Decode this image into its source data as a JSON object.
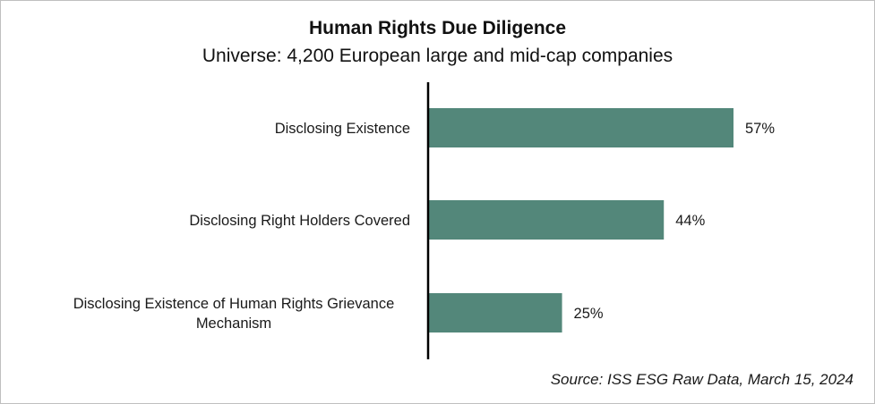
{
  "chart_data": {
    "type": "bar",
    "orientation": "horizontal",
    "title": "Human Rights Due Diligence",
    "subtitle": "Universe: 4,200  European large and mid-cap companies",
    "categories": [
      "Disclosing Existence",
      "Disclosing Right Holders Covered",
      "Disclosing Existence of Human Rights Grievance Mechanism"
    ],
    "category_lines": [
      [
        "Disclosing Existence"
      ],
      [
        "Disclosing Right Holders Covered"
      ],
      [
        "Disclosing Existence of Human Rights Grievance",
        "Mechanism"
      ]
    ],
    "values": [
      57,
      44,
      25
    ],
    "data_labels": [
      "57%",
      "44%",
      "25%"
    ],
    "value_unit": "%",
    "xlim": [
      0,
      100
    ],
    "grid": false,
    "legend": "none",
    "bar_color": "#53877a",
    "axis_color": "#000000",
    "source": "Source: ISS ESG Raw Data, March 15, 2024"
  }
}
